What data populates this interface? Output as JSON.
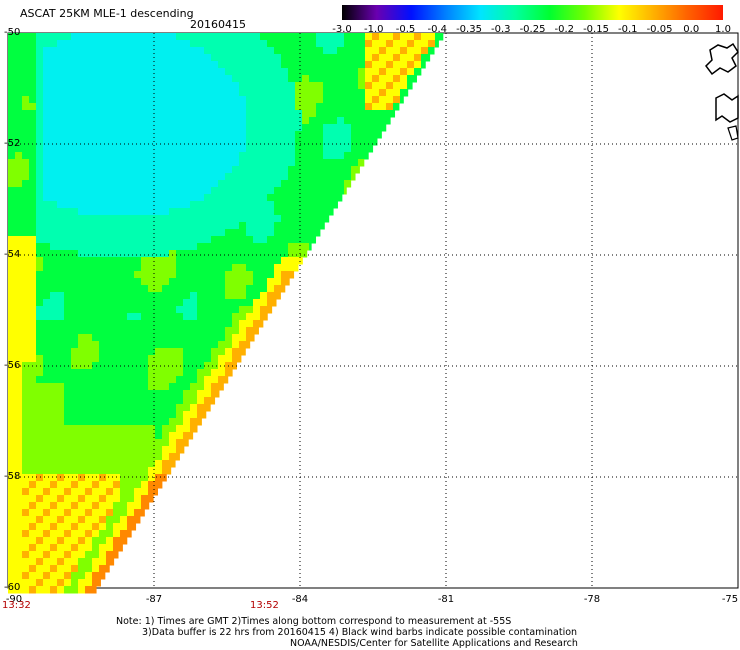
{
  "header": {
    "title": "ASCAT 25KM MLE-1 descending",
    "date": "20160415"
  },
  "colorbar": {
    "labels": [
      "-3.0",
      "-1.0",
      "-0.5",
      "-0.4",
      "-0.35",
      "-0.3",
      "-0.25",
      "-0.2",
      "-0.15",
      "-0.1",
      "-0.05",
      "0.0",
      "1.0"
    ],
    "colors": [
      "#000000",
      "#6a00b0",
      "#0010ff",
      "#0080ff",
      "#00e4ff",
      "#00ffa0",
      "#00ff30",
      "#70ff00",
      "#ffff00",
      "#ffb000",
      "#ff6000",
      "#ff1a00"
    ]
  },
  "map": {
    "lat_labels": [
      "-50",
      "-52",
      "-54",
      "-56",
      "-58",
      "-60"
    ],
    "lon_labels": [
      "-90",
      "-87",
      "-84",
      "-81",
      "-78",
      "-75"
    ],
    "lat_range": [
      -60,
      -50
    ],
    "lon_range": [
      -90,
      -75
    ],
    "time_labels": [
      "13:32",
      "13:52"
    ],
    "swath_colors": {
      "cyan": "#00f0f0",
      "aqua": "#00ffb0",
      "green": "#00ff40",
      "lime": "#80ff00",
      "yellow": "#ffff00",
      "orange": "#ffb000",
      "dark_orange": "#ff8800"
    }
  },
  "notes": {
    "line1": "Note: 1) Times are GMT 2)Times along bottom correspond to measurement at -55S",
    "line2": "3)Data buffer is 22 hrs from 20160415 4) Black wind barbs indicate possible contamination",
    "line3": "NOAA/NESDIS/Center for Satellite Applications and Research"
  }
}
